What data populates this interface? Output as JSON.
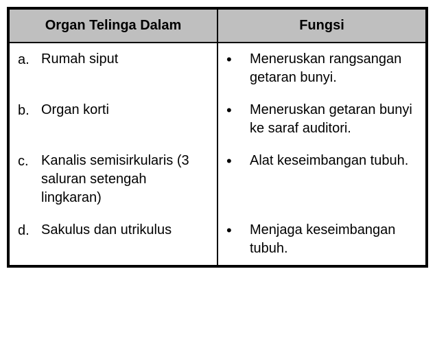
{
  "table": {
    "header_bg": "#bfbfbf",
    "columns": [
      {
        "label": "Organ Telinga Dalam"
      },
      {
        "label": "Fungsi"
      }
    ],
    "rows": [
      {
        "marker": "a.",
        "organ": "Rumah siput",
        "bullet": "•",
        "fungsi": "Meneruskan rangsangan getaran bunyi."
      },
      {
        "marker": "b.",
        "organ": "Organ korti",
        "bullet": "•",
        "fungsi": "Meneruskan getaran bunyi ke saraf auditori."
      },
      {
        "marker": "c.",
        "organ": "Kanalis semisirkularis (3 saluran setengah lingkaran)",
        "bullet": "•",
        "fungsi": "Alat keseimbangan tubuh."
      },
      {
        "marker": "d.",
        "organ": "Sakulus dan utrikulus",
        "bullet": "•",
        "fungsi": "Menjaga keseimbangan tubuh."
      }
    ]
  }
}
